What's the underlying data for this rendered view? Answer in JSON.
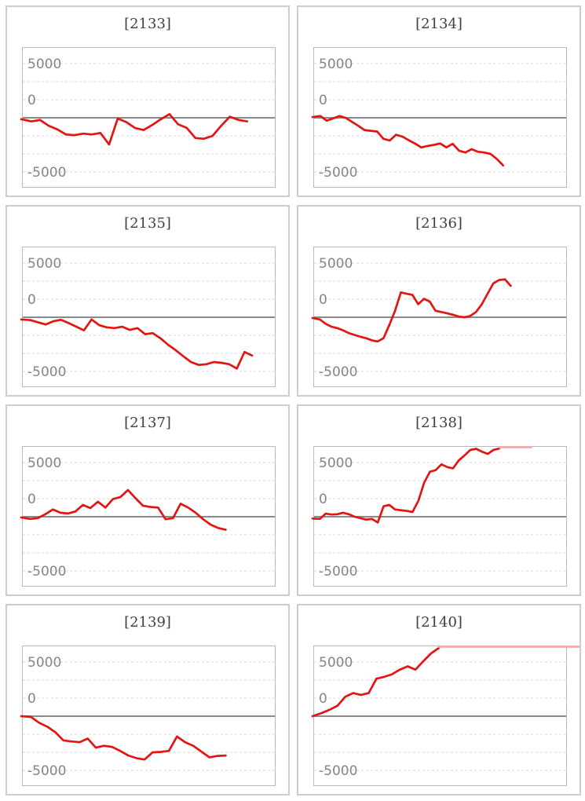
{
  "style": {
    "series_red": "#e41410",
    "series_red_faded": "#f2abad",
    "zero_line_color": "#8a8a8a",
    "grid_line_color": "#d8d8d8",
    "axis_text_color": "#84848c",
    "title_text_color": "#3e3e46",
    "card_border_color": "#cdcdcd",
    "plot_border_color": "#bababa",
    "background": "#ffffff"
  },
  "y_axis": {
    "tick_labels": [
      "5000",
      "0",
      "-5000"
    ]
  },
  "chart_data": [
    {
      "type": "line",
      "title": "[2133]",
      "y_axis_ticks": [
        "5000",
        "0",
        "-5000"
      ],
      "grid": "horizontal-dotted",
      "legend": "none",
      "end_frac": 0.89,
      "flat_tail": null,
      "values": [
        -100,
        -250,
        -150,
        -550,
        -800,
        -1150,
        -1200,
        -1100,
        -1150,
        -1050,
        -1850,
        -50,
        -300,
        -700,
        -850,
        -500,
        -100,
        500,
        -450,
        -700,
        -1400,
        -1450,
        -1250,
        -550,
        150,
        -150,
        -250
      ]
    },
    {
      "type": "line",
      "title": "[2134]",
      "y_axis_ticks": [
        "5000",
        "0",
        "-5000"
      ],
      "grid": "horizontal-dotted",
      "legend": "none",
      "end_frac": 0.75,
      "flat_tail": null,
      "values": [
        100,
        250,
        -200,
        -50,
        250,
        0,
        -275,
        -550,
        -850,
        -900,
        -950,
        -1450,
        -1575,
        -1175,
        -1300,
        -1550,
        -1775,
        -2050,
        -1950,
        -1875,
        -1775,
        -2050,
        -1800,
        -2275,
        -2400,
        -2175,
        -2350,
        -2400,
        -2500,
        -2850,
        -3300
      ]
    },
    {
      "type": "line",
      "title": "[2135]",
      "y_axis_ticks": [
        "5000",
        "0",
        "-5000"
      ],
      "grid": "horizontal-dotted",
      "legend": "none",
      "end_frac": 0.91,
      "flat_tail": null,
      "values": [
        -150,
        -200,
        -350,
        -500,
        -275,
        -175,
        -400,
        -650,
        -900,
        -150,
        -550,
        -700,
        -750,
        -650,
        -875,
        -750,
        -1175,
        -1100,
        -1450,
        -1900,
        -2275,
        -2700,
        -3100,
        -3300,
        -3250,
        -3100,
        -3150,
        -3250,
        -3550,
        -2400,
        -2650
      ]
    },
    {
      "type": "line",
      "title": "[2136]",
      "y_axis_ticks": [
        "5000",
        "0",
        "-5000"
      ],
      "grid": "horizontal-dotted",
      "legend": "none",
      "end_frac": 0.78,
      "flat_tail": null,
      "values": [
        -50,
        -150,
        -450,
        -650,
        -750,
        -900,
        -1100,
        -1225,
        -1350,
        -1450,
        -1600,
        -1675,
        -1450,
        -550,
        900,
        3450,
        3250,
        3100,
        1800,
        2550,
        2175,
        900,
        725,
        550,
        350,
        100,
        0,
        175,
        725,
        1800,
        3250,
        4700,
        5150,
        5250,
        4350
      ]
    },
    {
      "type": "line",
      "title": "[2137]",
      "y_axis_ticks": [
        "5000",
        "0",
        "-5000"
      ],
      "grid": "horizontal-dotted",
      "legend": "none",
      "end_frac": 0.805,
      "flat_tail": null,
      "values": [
        -50,
        -150,
        -100,
        350,
        1000,
        550,
        450,
        725,
        1625,
        1200,
        2075,
        1275,
        2450,
        2725,
        3700,
        2550,
        1525,
        1350,
        1275,
        -175,
        -100,
        1800,
        1275,
        550,
        -175,
        -550,
        -775,
        -900
      ]
    },
    {
      "type": "line",
      "title": "[2138]",
      "y_axis_ticks": [
        "5000",
        "0",
        "-5000"
      ],
      "grid": "horizontal-dotted",
      "legend": "none",
      "end_frac": 0.735,
      "flat_tail": {
        "from_frac": 0.735,
        "to_frac": 0.862
      },
      "values": [
        -125,
        -150,
        425,
        300,
        350,
        550,
        350,
        0,
        -100,
        -200,
        -150,
        -400,
        1450,
        1625,
        1000,
        900,
        800,
        650,
        2175,
        4700,
        6225,
        6450,
        7250,
        6875,
        6700,
        7800,
        8500,
        9250,
        9400,
        9000,
        8700,
        9250,
        9450
      ]
    },
    {
      "type": "line",
      "title": "[2139]",
      "y_axis_ticks": [
        "5000",
        "0",
        "-5000"
      ],
      "grid": "horizontal-dotted",
      "legend": "none",
      "end_frac": 0.805,
      "flat_tail": null,
      "values": [
        0,
        -50,
        -450,
        -725,
        -1100,
        -1675,
        -1750,
        -1800,
        -1550,
        -2175,
        -2050,
        -2125,
        -2400,
        -2725,
        -2900,
        -3000,
        -2500,
        -2475,
        -2400,
        -1400,
        -1800,
        -2050,
        -2450,
        -2850,
        -2750,
        -2725
      ]
    },
    {
      "type": "line",
      "title": "[2140]",
      "y_axis_ticks": [
        "5000",
        "0",
        "-5000"
      ],
      "grid": "horizontal-dotted",
      "legend": "none",
      "end_frac": 0.495,
      "flat_tail": {
        "from_frac": 0.495,
        "to_frac": 1.05
      },
      "values": [
        0,
        450,
        900,
        1450,
        2700,
        3200,
        2950,
        3200,
        5200,
        5450,
        5800,
        6450,
        6900,
        6450,
        7600,
        8700,
        9450
      ]
    }
  ]
}
